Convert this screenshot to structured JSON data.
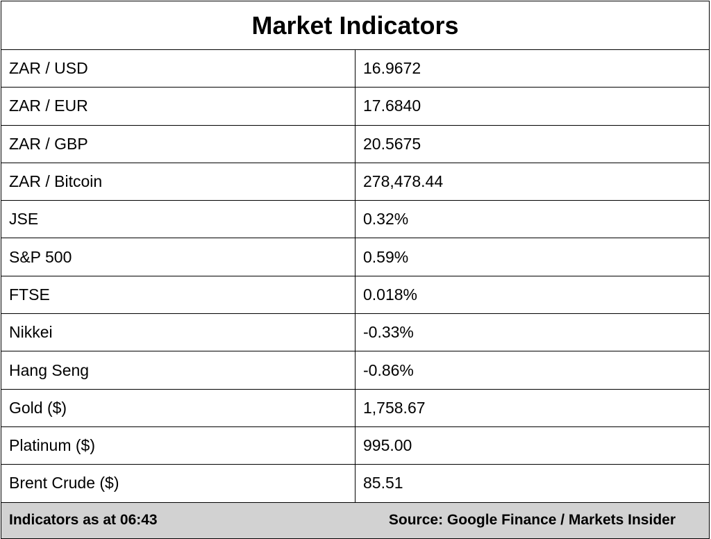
{
  "title": "Market Indicators",
  "rows": [
    {
      "label": "ZAR / USD",
      "value": "16.9672"
    },
    {
      "label": "ZAR / EUR",
      "value": "17.6840"
    },
    {
      "label": "ZAR / GBP",
      "value": "20.5675"
    },
    {
      "label": "ZAR / Bitcoin",
      "value": "278,478.44"
    },
    {
      "label": "JSE",
      "value": "0.32%"
    },
    {
      "label": "S&P 500",
      "value": "0.59%"
    },
    {
      "label": "FTSE",
      "value": "0.018%"
    },
    {
      "label": "Nikkei",
      "value": "-0.33%"
    },
    {
      "label": "Hang Seng",
      "value": "-0.86%"
    },
    {
      "label": "Gold ($)",
      "value": "1,758.67"
    },
    {
      "label": "Platinum ($)",
      "value": "995.00"
    },
    {
      "label": "Brent Crude ($)",
      "value": "85.51"
    }
  ],
  "footer": {
    "timestamp": "Indicators as at 06:43",
    "source": "Source: Google Finance / Markets Insider"
  },
  "colors": {
    "footer_background": "#d2d2d2",
    "border": "#000000"
  }
}
